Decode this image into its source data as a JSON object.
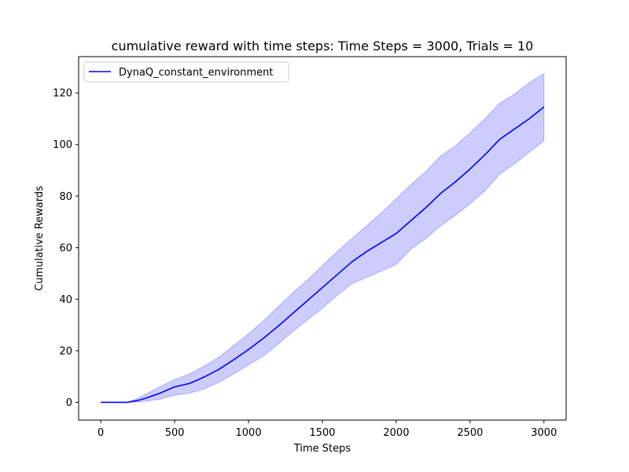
{
  "chart_data": {
    "type": "line",
    "title": "cumulative reward with time steps: Time Steps = 3000, Trials = 10",
    "xlabel": "Time Steps",
    "ylabel": "Cumulative Rewards",
    "xlim": [
      -150,
      3150
    ],
    "ylim": [
      -6.9,
      134.1
    ],
    "x_ticks": [
      0,
      500,
      1000,
      1500,
      2000,
      2500,
      3000
    ],
    "y_ticks": [
      0,
      20,
      40,
      60,
      80,
      100,
      120
    ],
    "grid": false,
    "legend_position": "upper-left",
    "series": [
      {
        "name": "DynaQ_constant_environment",
        "color": "#0000ff",
        "band_color": "#0000ff",
        "band_opacity": 0.2,
        "x": [
          0,
          100,
          180,
          250,
          300,
          400,
          500,
          600,
          700,
          800,
          900,
          1000,
          1100,
          1200,
          1300,
          1400,
          1500,
          1600,
          1700,
          1800,
          1900,
          2000,
          2100,
          2200,
          2300,
          2400,
          2500,
          2600,
          2700,
          2800,
          2900,
          3000
        ],
        "mean": [
          0,
          0,
          0,
          0.7,
          1.5,
          3.5,
          6.0,
          7.3,
          9.8,
          12.8,
          16.5,
          20.5,
          24.8,
          29.5,
          34.5,
          39.5,
          44.5,
          49.5,
          54.5,
          58.5,
          62.0,
          65.5,
          70.5,
          75.5,
          81.0,
          85.5,
          90.5,
          96.0,
          102.0,
          106.0,
          110.0,
          114.6
        ],
        "upper": [
          0,
          0,
          0,
          1.5,
          3.0,
          6.0,
          8.8,
          11.0,
          14.0,
          17.5,
          22.0,
          26.5,
          31.5,
          37.0,
          42.5,
          47.5,
          53.0,
          58.5,
          63.5,
          68.5,
          73.5,
          79.0,
          84.5,
          89.5,
          95.5,
          99.5,
          104.5,
          110.0,
          116.0,
          119.5,
          124.0,
          127.5
        ],
        "lower": [
          0,
          0,
          0,
          0.1,
          0.4,
          1.2,
          2.8,
          3.5,
          5.2,
          7.8,
          11.0,
          14.5,
          18.0,
          22.5,
          27.5,
          32.0,
          36.5,
          41.5,
          46.0,
          48.5,
          51.0,
          53.5,
          59.5,
          63.5,
          68.5,
          72.5,
          77.0,
          82.0,
          88.5,
          92.5,
          97.0,
          101.5
        ]
      }
    ]
  }
}
